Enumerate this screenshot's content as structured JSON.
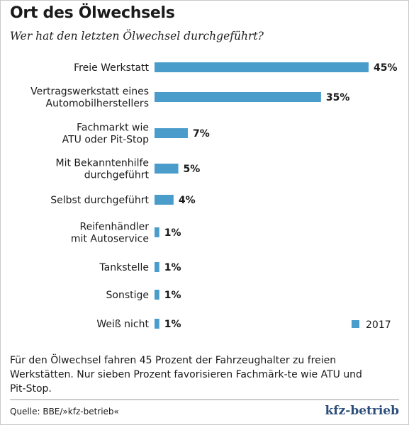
{
  "header": {
    "title": "Ort des Ölwechsels",
    "subtitle": "Wer hat den letzten Ölwechsel durchgeführt?"
  },
  "chart_data": {
    "type": "bar",
    "orientation": "horizontal",
    "categories": [
      [
        "Freie Werkstatt"
      ],
      [
        "Vertragswerkstatt eines",
        "Automobilherstellers"
      ],
      [
        "Fachmarkt wie",
        "ATU oder Pit-Stop"
      ],
      [
        "Mit Bekanntenhilfe",
        "durchgeführt"
      ],
      [
        "Selbst durchgeführt"
      ],
      [
        "Reifenhändler",
        "mit Autoservice"
      ],
      [
        "Tankstelle"
      ],
      [
        "Sonstige"
      ],
      [
        "Weiß nicht"
      ]
    ],
    "series": [
      {
        "name": "2017",
        "values": [
          45,
          35,
          7,
          5,
          4,
          1,
          1,
          1,
          1
        ],
        "labels": [
          "45%",
          "35%",
          "7%",
          "5%",
          "4%",
          "1%",
          "1%",
          "1%",
          "1%"
        ]
      }
    ],
    "legend_position": "bottom-right",
    "grid": false,
    "bar_color": "#4a9ccb"
  },
  "footer": {
    "note": "Für den Ölwechsel fahren 45 Prozent der Fahrzeughalter zu freien Werkstätten. Nur sieben Prozent favorisieren Fachmärk-te wie ATU und Pit-Stop.",
    "source": "Quelle: BBE/»kfz-betrieb«",
    "brand": "kfz-betrieb"
  }
}
